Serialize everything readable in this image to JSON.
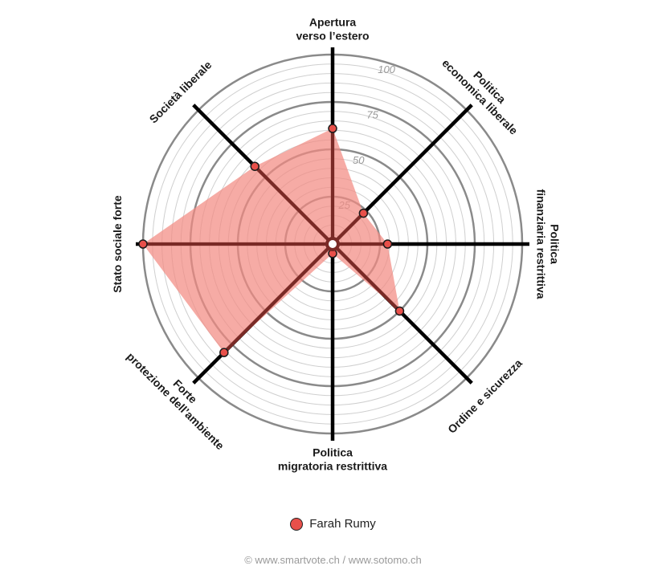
{
  "chart_data": {
    "type": "radar",
    "axes": [
      [
        "Apertura",
        "verso l’estero"
      ],
      [
        "Politica",
        "economica liberale"
      ],
      [
        "Politica",
        "finanziaria restrittiva"
      ],
      [
        "Ordine e sicurezza"
      ],
      [
        "Politica",
        "migratoria restrittiva"
      ],
      [
        "Forte",
        "protezione dell’ambiente"
      ],
      [
        "Stato sociale forte"
      ],
      [
        "Società liberale"
      ]
    ],
    "series": [
      {
        "name": "Farah Rumy",
        "values": [
          61,
          23,
          29,
          50,
          5,
          81,
          100,
          58
        ]
      }
    ],
    "r_ticks": [
      25,
      50,
      75,
      100
    ],
    "rlim": [
      0,
      100
    ]
  },
  "colors": {
    "series_fill": "#f28b82",
    "series_point": "#e8504a",
    "series_line": "#7a2a26",
    "spoke": "#000000",
    "grid_major": "#8a8a8a",
    "grid_minor": "#cfcfcf"
  },
  "legend": {
    "label": "Farah Rumy"
  },
  "footer": {
    "text": "© www.smartvote.ch / www.sotomo.ch"
  }
}
